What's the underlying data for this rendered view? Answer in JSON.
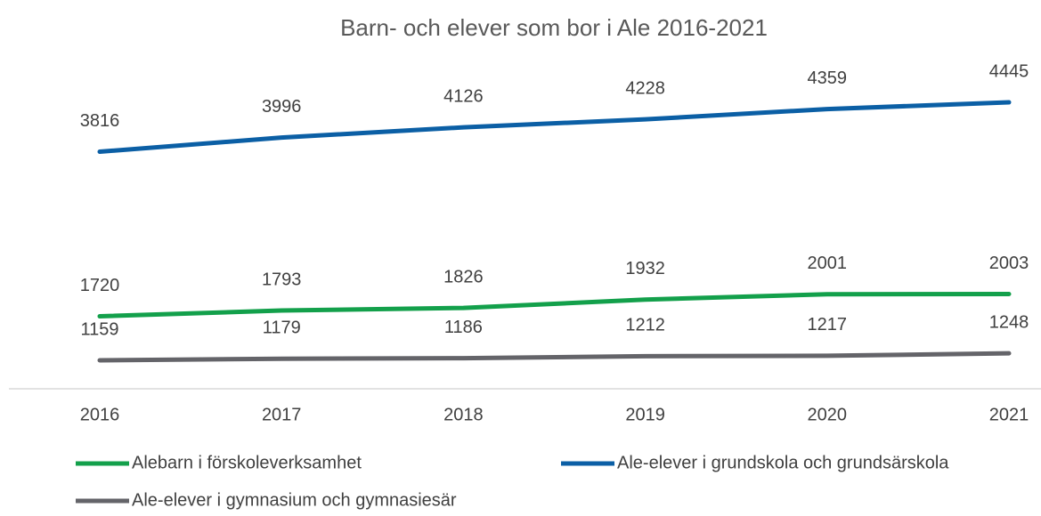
{
  "chart_data": {
    "type": "line",
    "title": "Barn- och elever som bor i Ale 2016-2021",
    "categories": [
      "2016",
      "2017",
      "2018",
      "2019",
      "2020",
      "2021"
    ],
    "series": [
      {
        "name": "Alebarn i förskoleverksamhet",
        "color": "#13a04b",
        "values": [
          1720,
          1793,
          1826,
          1932,
          2001,
          2003
        ]
      },
      {
        "name": "Ale-elever i grundskola och grundsärskola",
        "color": "#0b5fa5",
        "values": [
          3816,
          3996,
          4126,
          4228,
          4359,
          4445
        ]
      },
      {
        "name": "Ale-elever i gymnasium och gymnasiesär",
        "color": "#646469",
        "values": [
          1159,
          1179,
          1186,
          1212,
          1217,
          1248
        ]
      }
    ],
    "grid": false
  }
}
